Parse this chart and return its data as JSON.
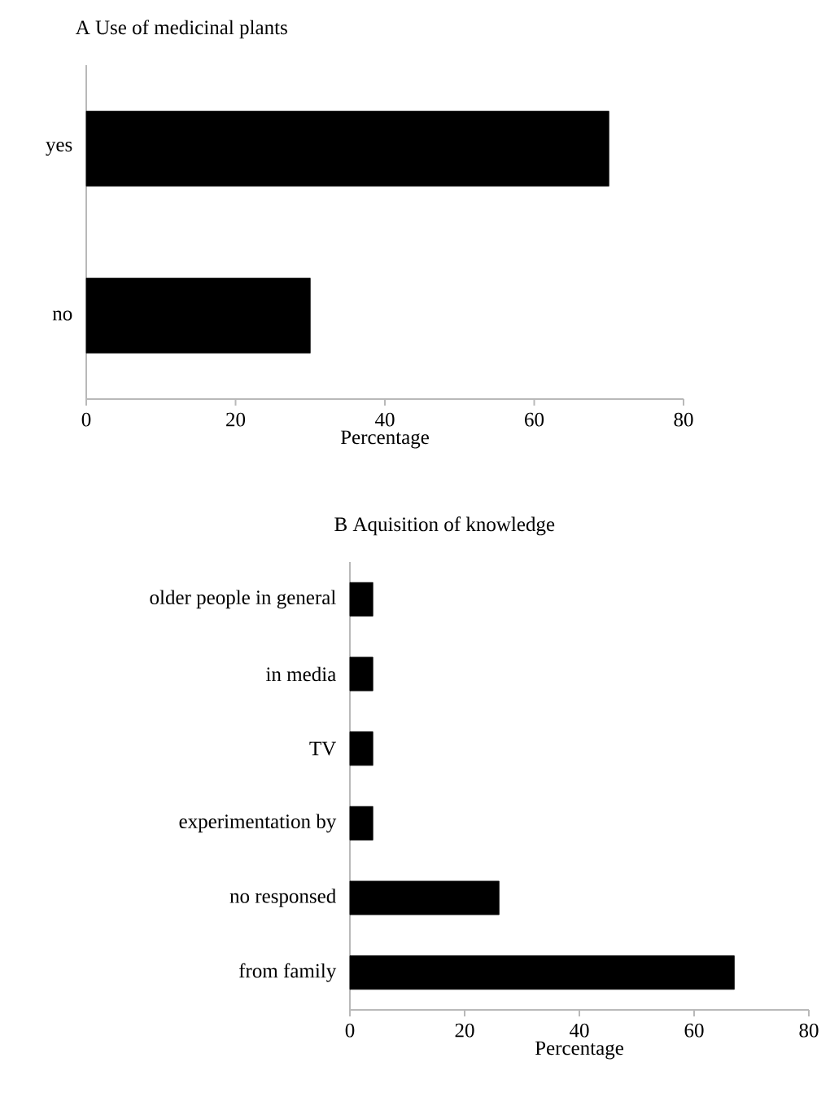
{
  "chart_data": [
    {
      "type": "bar",
      "orientation": "horizontal",
      "title": "A Use of medicinal plants",
      "categories": [
        "yes",
        "no"
      ],
      "values": [
        70,
        30
      ],
      "color": "#000000",
      "xlim": [
        0,
        80
      ],
      "xticks": [
        0,
        20,
        40,
        60,
        80
      ],
      "xlabel": "Percentage"
    },
    {
      "type": "bar",
      "orientation": "horizontal",
      "title": "B Aquisition of knowledge",
      "categories": [
        "older people in general",
        "in media",
        "TV",
        "experimentation by",
        "no responsed",
        "from family"
      ],
      "values": [
        4,
        4,
        4,
        4,
        26,
        67
      ],
      "color": "#000000",
      "xlim": [
        0,
        80
      ],
      "xticks": [
        0,
        20,
        40,
        60,
        80
      ],
      "xlabel": "Percentage"
    }
  ]
}
